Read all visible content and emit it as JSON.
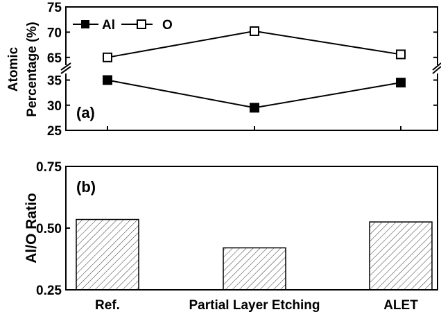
{
  "chart_data": [
    {
      "type": "line",
      "panel_label": "(a)",
      "ylabel_line1": "Atomic",
      "ylabel_line2": "Percentage (%)",
      "categories": [
        "Ref.",
        "Partial Layer Etching",
        "ALET"
      ],
      "axis_break": true,
      "ylim_lower": [
        25,
        37
      ],
      "ylim_upper": [
        62.5,
        75
      ],
      "yticks_lower": [
        25,
        30,
        35
      ],
      "yticks_upper": [
        65,
        70,
        75
      ],
      "legend_position": "top-left",
      "grid": false,
      "series": [
        {
          "name": "Al",
          "marker": "filled-square",
          "values": [
            35.0,
            29.5,
            34.5
          ]
        },
        {
          "name": "O",
          "marker": "open-square",
          "values": [
            65.0,
            70.2,
            65.6
          ]
        }
      ]
    },
    {
      "type": "bar",
      "panel_label": "(b)",
      "ylabel": "Al/O Ratio",
      "categories": [
        "Ref.",
        "Partial Layer Etching",
        "ALET"
      ],
      "values": [
        0.535,
        0.42,
        0.525
      ],
      "ylim": [
        0.25,
        0.75
      ],
      "yticks": [
        "0.25",
        "0.50",
        "0.75"
      ],
      "bar_pattern": "diagonal-hatch",
      "grid": false
    }
  ]
}
